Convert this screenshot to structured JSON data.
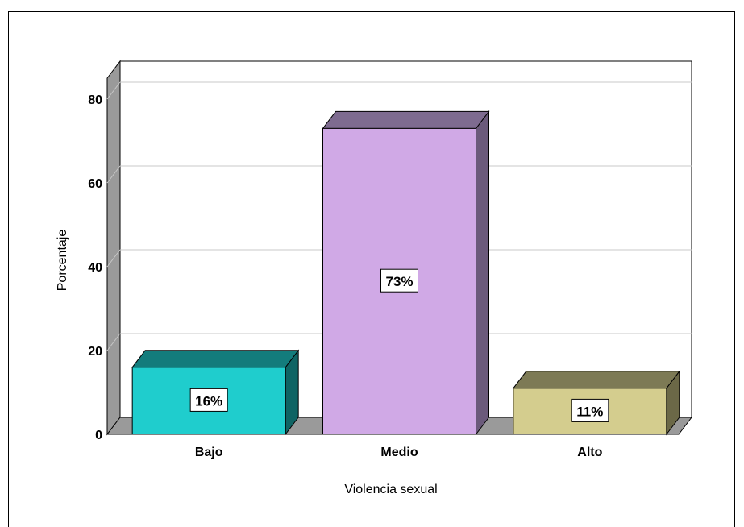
{
  "chart_data": {
    "type": "bar",
    "style": "3d",
    "categories": [
      "Bajo",
      "Medio",
      "Alto"
    ],
    "values": [
      16,
      73,
      11
    ],
    "data_labels": [
      "16%",
      "73%",
      "11%"
    ],
    "xlabel": "Violencia sexual",
    "ylabel": "Porcentaje",
    "ylim": [
      0,
      85
    ],
    "yticks": [
      0,
      20,
      40,
      60,
      80
    ],
    "grid": true,
    "legend": "none",
    "colors": [
      {
        "front": "#1fcdcd",
        "top": "#137c7c",
        "side": "#0f6464"
      },
      {
        "front": "#d0a9e6",
        "top": "#7e6b90",
        "side": "#6b5a7b"
      },
      {
        "front": "#d4cd8e",
        "top": "#7d7a55",
        "side": "#6b6847"
      }
    ],
    "wall_color": "#9a9a9a"
  }
}
